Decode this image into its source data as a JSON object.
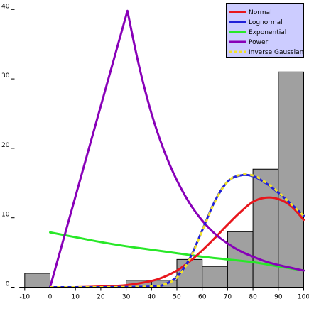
{
  "chart_data": {
    "type": "bar",
    "title": "",
    "xlabel": "",
    "ylabel": "",
    "xlim": [
      -12,
      100
    ],
    "ylim": [
      0,
      40
    ],
    "x_ticks": [
      -10,
      0,
      10,
      20,
      30,
      40,
      50,
      60,
      70,
      80,
      90,
      100
    ],
    "y_ticks": [
      0,
      10,
      20,
      30,
      40
    ],
    "grid": false,
    "legend_position": "top-right",
    "histogram": {
      "bin_width": 10,
      "bin_edges": [
        -10,
        0,
        10,
        20,
        30,
        40,
        50,
        60,
        70,
        80,
        90,
        100
      ],
      "counts": [
        2,
        0,
        0,
        0,
        1,
        1,
        4,
        3,
        8,
        17,
        31
      ],
      "fill_color": "#a0a0a0",
      "edge_color": "#000000"
    },
    "series": [
      {
        "name": "Normal",
        "color": "#e8161c",
        "x": [
          0,
          10,
          20,
          30,
          40,
          45,
          50,
          55,
          60,
          65,
          70,
          75,
          80,
          85,
          90,
          95,
          100
        ],
        "y": [
          0.0,
          0.0,
          0.1,
          0.3,
          0.9,
          1.5,
          2.4,
          3.7,
          5.3,
          7.1,
          9.0,
          10.8,
          12.3,
          12.9,
          12.7,
          11.7,
          9.7
        ]
      },
      {
        "name": "Lognormal",
        "color": "#2020d8",
        "x": [
          0,
          20,
          40,
          45,
          50,
          55,
          60,
          65,
          70,
          75,
          80,
          85,
          90,
          95,
          100
        ],
        "y": [
          0.0,
          0.0,
          0.1,
          0.4,
          1.5,
          4.1,
          8.2,
          12.4,
          15.2,
          16.1,
          16.0,
          15.0,
          13.6,
          12.0,
          10.3
        ]
      },
      {
        "name": "Exponential",
        "color": "#28e828",
        "x": [
          0,
          10,
          20,
          30,
          40,
          50,
          60,
          70,
          80,
          90,
          100
        ],
        "y": [
          7.9,
          7.2,
          6.5,
          5.9,
          5.4,
          4.9,
          4.4,
          4.0,
          3.6,
          3.0,
          2.4
        ]
      },
      {
        "name": "Power",
        "color": "#8800b8",
        "x": [
          0,
          30.5,
          35,
          40,
          45,
          50,
          55,
          60,
          65,
          70,
          75,
          80,
          85,
          90,
          95,
          100
        ],
        "y": [
          0.0,
          39.8,
          32.0,
          25.0,
          19.6,
          15.4,
          12.1,
          9.6,
          7.7,
          6.3,
          5.2,
          4.4,
          3.7,
          3.2,
          2.8,
          2.4
        ]
      },
      {
        "name": "Inverse Gaussian",
        "color": "#f2e22a",
        "dashed": true,
        "x": [
          0,
          20,
          40,
          45,
          50,
          55,
          60,
          65,
          70,
          75,
          80,
          85,
          90,
          95,
          100
        ],
        "y": [
          0.0,
          0.0,
          0.1,
          0.4,
          1.4,
          4.0,
          8.1,
          12.3,
          15.2,
          16.2,
          16.1,
          15.1,
          13.7,
          12.0,
          10.3
        ]
      }
    ]
  }
}
